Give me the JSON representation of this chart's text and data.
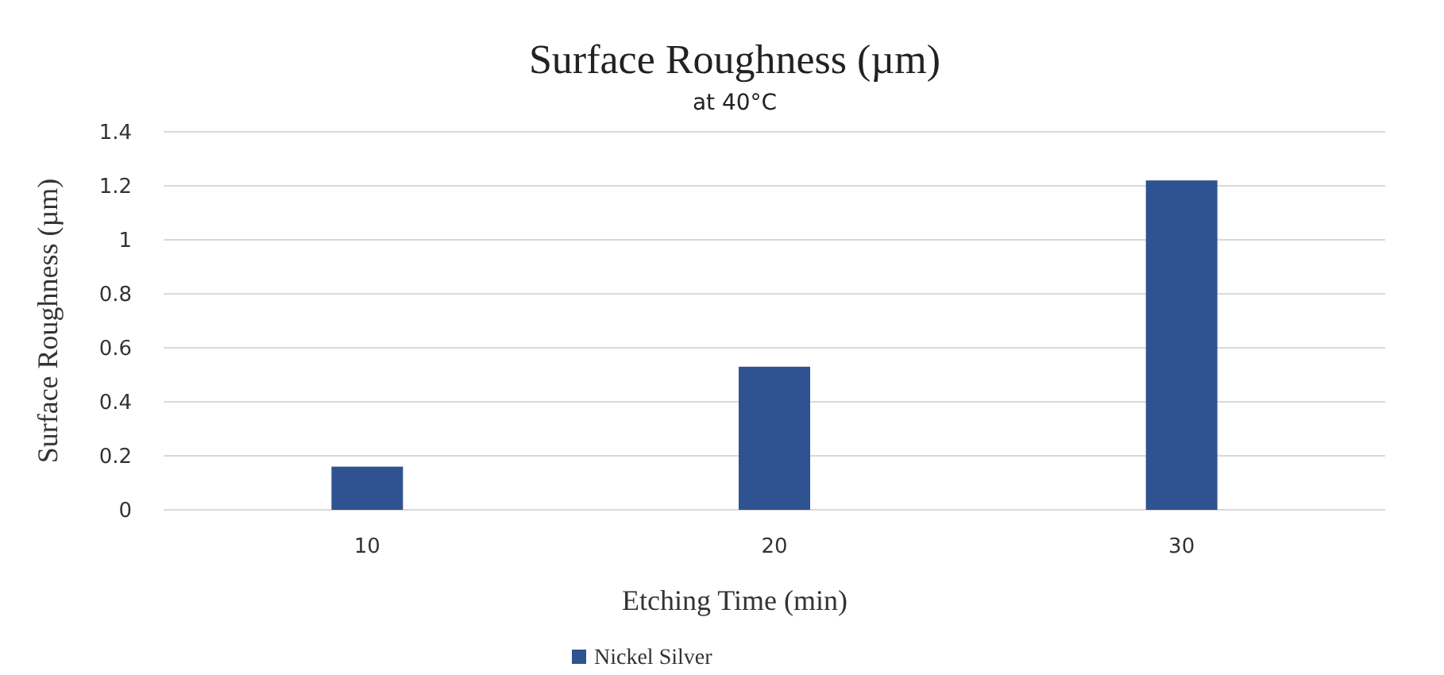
{
  "chart_data": {
    "type": "bar",
    "title": "Surface Roughness (µm)",
    "subtitle": "at 40°C",
    "xlabel": "Etching Time  (min)",
    "ylabel": "Surface Roughness  (µm)",
    "categories": [
      "10",
      "20",
      "30"
    ],
    "series": [
      {
        "name": "Nickel Silver",
        "color": "#2f5290",
        "values": [
          0.16,
          0.53,
          1.22
        ]
      }
    ],
    "ylim": [
      0,
      1.4
    ],
    "yticks": [
      0,
      0.2,
      0.4,
      0.6,
      0.8,
      1,
      1.2,
      1.4
    ],
    "grid": "y",
    "legend": "bottom left"
  }
}
